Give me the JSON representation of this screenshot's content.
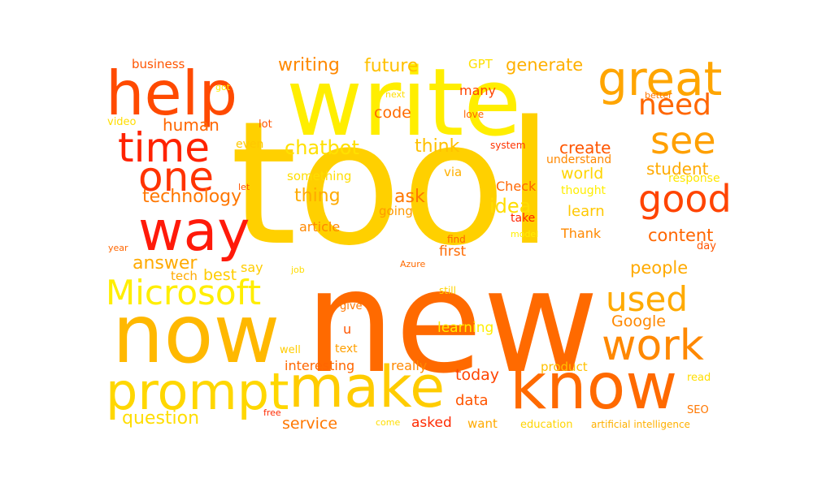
{
  "words": [
    {
      "text": "tool",
      "color": "#FFD000"
    },
    {
      "text": "new",
      "color": "#FF6A00"
    },
    {
      "text": "write",
      "color": "#FFEE00"
    },
    {
      "text": "help",
      "color": "#FF4A00"
    },
    {
      "text": "great",
      "color": "#FFA500"
    },
    {
      "text": "way",
      "color": "#FF1A0A"
    },
    {
      "text": "now",
      "color": "#FFB800"
    },
    {
      "text": "make",
      "color": "#FFCC00"
    },
    {
      "text": "know",
      "color": "#FF6A00"
    },
    {
      "text": "prompt",
      "color": "#FFD700"
    },
    {
      "text": "time",
      "color": "#FF2200"
    },
    {
      "text": "one",
      "color": "#FF3300"
    },
    {
      "text": "Microsoft",
      "color": "#FFEE00"
    },
    {
      "text": "work",
      "color": "#FF8800"
    },
    {
      "text": "used",
      "color": "#FFAA00"
    },
    {
      "text": "good",
      "color": "#FF4400"
    },
    {
      "text": "see",
      "color": "#FFA000"
    },
    {
      "text": "need",
      "color": "#FF6600"
    },
    {
      "text": "business",
      "color": "#FF5500"
    },
    {
      "text": "writing",
      "color": "#FF8800"
    },
    {
      "text": "future",
      "color": "#FFC000"
    },
    {
      "text": "GPT",
      "color": "#FFE000"
    },
    {
      "text": "generate",
      "color": "#FFB000"
    },
    {
      "text": "got",
      "color": "#FFEE00"
    },
    {
      "text": "next",
      "color": "#FFDD00"
    },
    {
      "text": "many",
      "color": "#FF4400"
    },
    {
      "text": "better",
      "color": "#FF7700"
    },
    {
      "text": "love",
      "color": "#FF6600"
    },
    {
      "text": "code",
      "color": "#FF6A00"
    },
    {
      "text": "video",
      "color": "#FFDD00"
    },
    {
      "text": "human",
      "color": "#FF6600"
    },
    {
      "text": "lot",
      "color": "#FF5500"
    },
    {
      "text": "chatbot",
      "color": "#FFE000"
    },
    {
      "text": "think",
      "color": "#FFC000"
    },
    {
      "text": "create",
      "color": "#FF5500"
    },
    {
      "text": "even",
      "color": "#FFC800"
    },
    {
      "text": "system",
      "color": "#FF3300"
    },
    {
      "text": "understand",
      "color": "#FF8800"
    },
    {
      "text": "world",
      "color": "#FFD400"
    },
    {
      "text": "student",
      "color": "#FFAA00"
    },
    {
      "text": "something",
      "color": "#FFDD00"
    },
    {
      "text": "via",
      "color": "#FFB000"
    },
    {
      "text": "Check",
      "color": "#FF6600"
    },
    {
      "text": "response",
      "color": "#FFE800"
    },
    {
      "text": "technology",
      "color": "#FF7700"
    },
    {
      "text": "let",
      "color": "#FF5500"
    },
    {
      "text": "thing",
      "color": "#FFAA00"
    },
    {
      "text": "ask",
      "color": "#FF7700"
    },
    {
      "text": "idea",
      "color": "#FFDD00"
    },
    {
      "text": "thought",
      "color": "#FFEE00"
    },
    {
      "text": "going",
      "color": "#FF9900"
    },
    {
      "text": "take",
      "color": "#FF2200"
    },
    {
      "text": "learn",
      "color": "#FFC800"
    },
    {
      "text": "article",
      "color": "#FF8800"
    },
    {
      "text": "model",
      "color": "#FFEE00"
    },
    {
      "text": "find",
      "color": "#FF6600"
    },
    {
      "text": "Thank",
      "color": "#FF8800"
    },
    {
      "text": "content",
      "color": "#FF6600"
    },
    {
      "text": "year",
      "color": "#FF6600"
    },
    {
      "text": "answer",
      "color": "#FFAA00"
    },
    {
      "text": "say",
      "color": "#FFCC00"
    },
    {
      "text": "first",
      "color": "#FF6A00"
    },
    {
      "text": "day",
      "color": "#FF5500"
    },
    {
      "text": "people",
      "color": "#FFAA00"
    },
    {
      "text": "tech",
      "color": "#FFAA00"
    },
    {
      "text": "best",
      "color": "#FFCC00"
    },
    {
      "text": "job",
      "color": "#FFDD00"
    },
    {
      "text": "Azure",
      "color": "#FF6A00"
    },
    {
      "text": "still",
      "color": "#FFD400"
    },
    {
      "text": "give",
      "color": "#FF7700"
    },
    {
      "text": "Google",
      "color": "#FF8800"
    },
    {
      "text": "u",
      "color": "#FF5500"
    },
    {
      "text": "learning",
      "color": "#FFEE00"
    },
    {
      "text": "well",
      "color": "#FFCC00"
    },
    {
      "text": "text",
      "color": "#FFA000"
    },
    {
      "text": "interesting",
      "color": "#FF6600"
    },
    {
      "text": "really",
      "color": "#FF8800"
    },
    {
      "text": "product",
      "color": "#FFC000"
    },
    {
      "text": "today",
      "color": "#FF4400"
    },
    {
      "text": "read",
      "color": "#FFDD00"
    },
    {
      "text": "data",
      "color": "#FF5500"
    },
    {
      "text": "SEO",
      "color": "#FF7700"
    },
    {
      "text": "question",
      "color": "#FFDD00"
    },
    {
      "text": "free",
      "color": "#FF2A00"
    },
    {
      "text": "service",
      "color": "#FF7700"
    },
    {
      "text": "asked",
      "color": "#FF2A00"
    },
    {
      "text": "come",
      "color": "#FFDD00"
    },
    {
      "text": "want",
      "color": "#FFAA00"
    },
    {
      "text": "education",
      "color": "#FFD400"
    },
    {
      "text": "artificial intelligence",
      "color": "#FFB000"
    }
  ]
}
